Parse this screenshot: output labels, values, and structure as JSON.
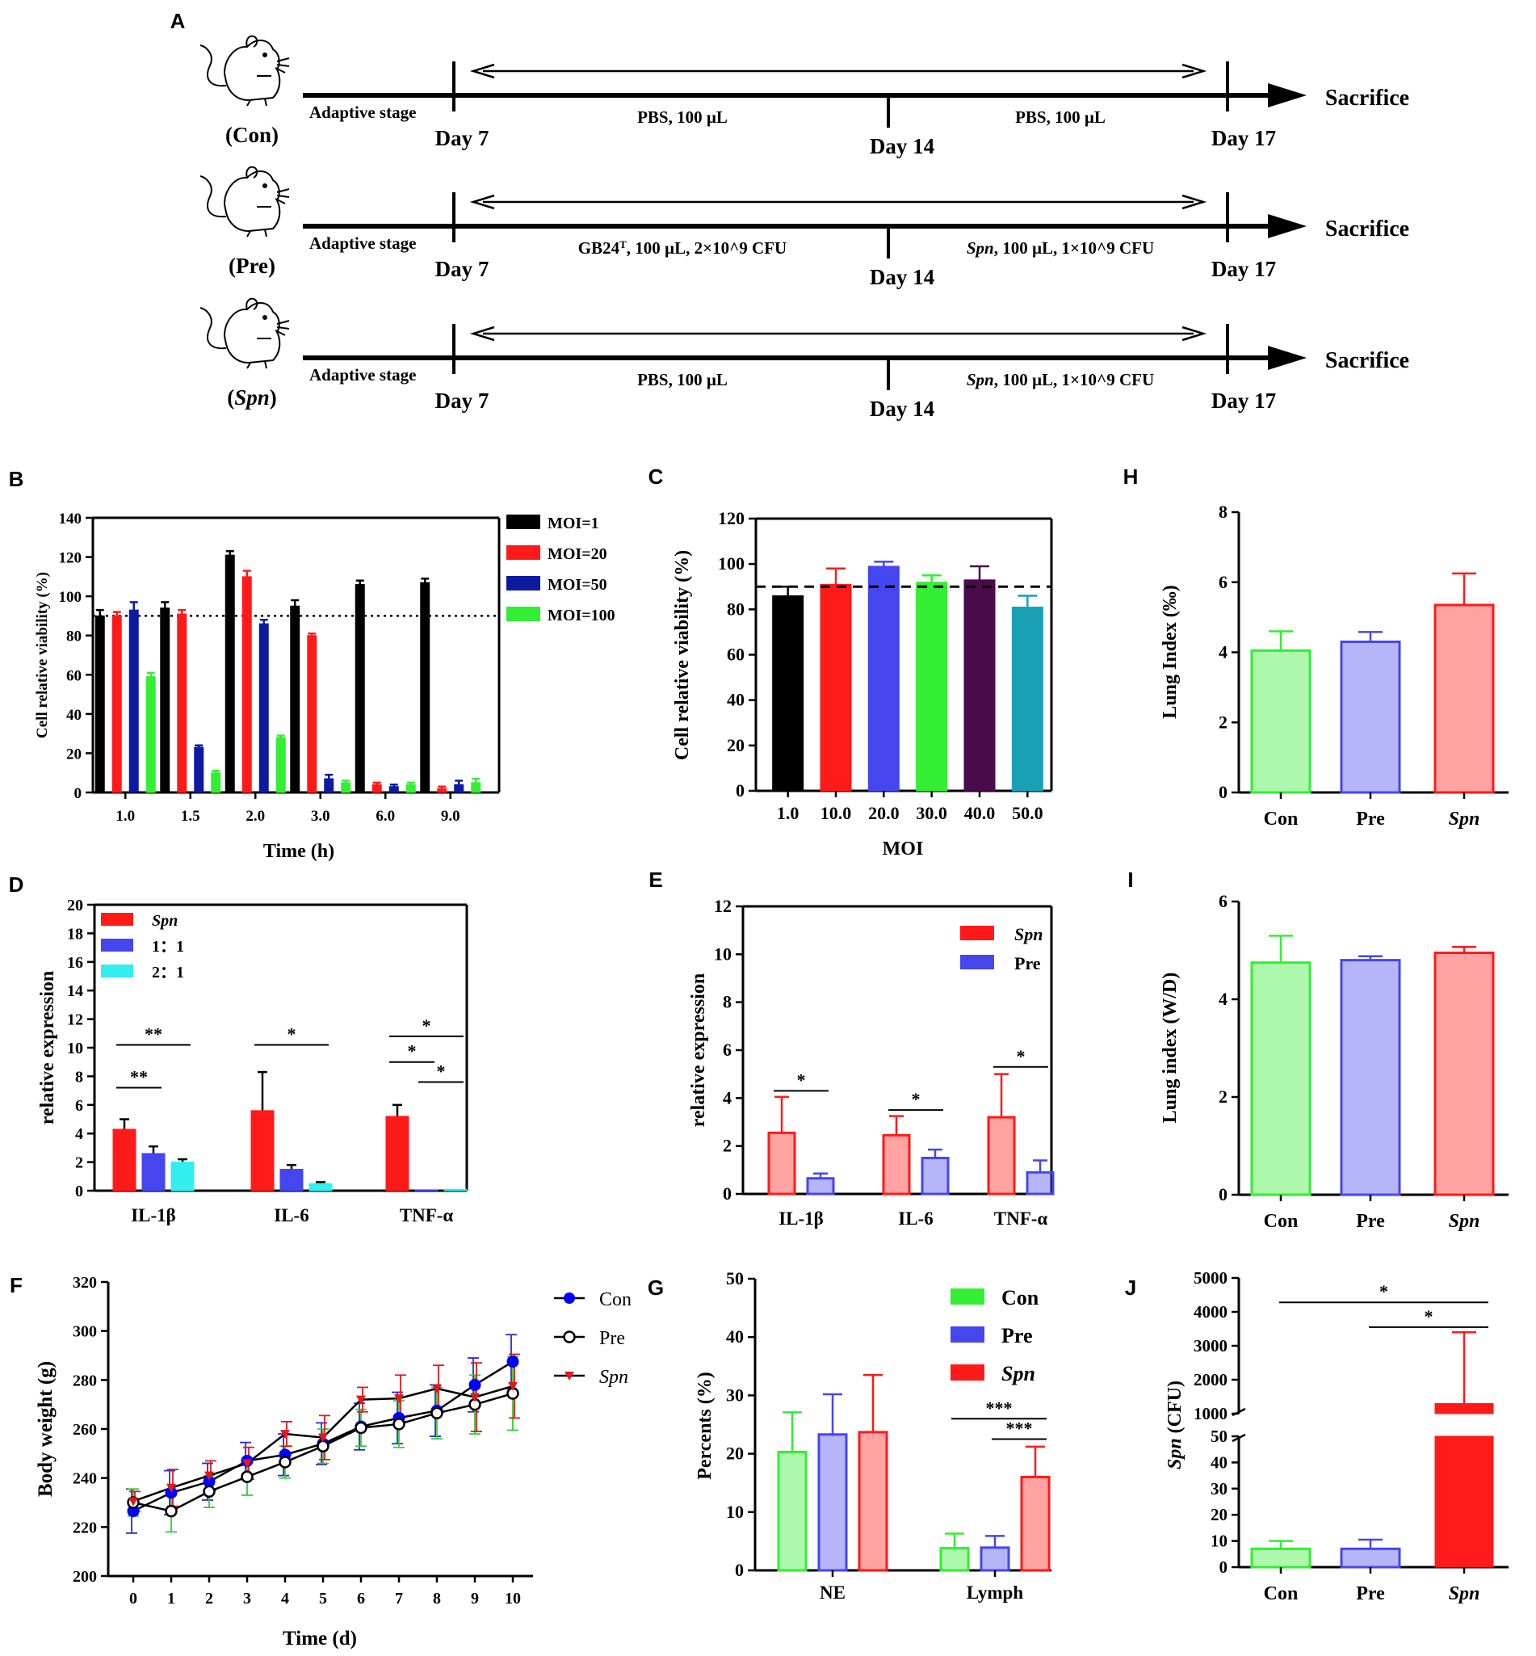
{
  "schematic": {
    "panel_label": "A",
    "sacrifice": "Sacrifice",
    "adaptive": "Adaptive stage",
    "day7": "Day 7",
    "day14": "Day 14",
    "day17": "Day 17",
    "rows": [
      {
        "group": "(Con)",
        "left_text": "PBS, 100 µL",
        "right_text": "PBS, 100 µL"
      },
      {
        "group": "(Pre)",
        "left_text": "GB24ᵀ, 100 µL, 2×10^9 CFU",
        "right_text": "Spn, 100 µL, 1×10^9 CFU"
      },
      {
        "group": "(Spn)",
        "left_text": "PBS, 100 µL",
        "right_text": "Spn, 100 µL, 1×10^9 CFU"
      }
    ]
  },
  "colors": {
    "black": "#000000",
    "red": "#ff1a1a",
    "blue": "#2a2ad8",
    "green": "#33ee33",
    "cyan": "#33eeee",
    "purple": "#4a0b4a",
    "teal": "#19a0b4",
    "navy": "#0d1a9e",
    "ltblue": "#4646ee"
  },
  "chart_data": [
    {
      "id": "B",
      "type": "bar",
      "panel_label": "B",
      "ylabel": "Cell relative viability (%)",
      "xlabel": "Time (h)",
      "ylim": [
        0,
        140
      ],
      "yticks": [
        0,
        20,
        40,
        60,
        80,
        100,
        120,
        140
      ],
      "categories": [
        "1.0",
        "1.5",
        "2.0",
        "3.0",
        "6.0",
        "9.0"
      ],
      "reference_line": 90,
      "series": [
        {
          "name": "MOI=1",
          "color": "#000000",
          "values": [
            90,
            94,
            121,
            95,
            106,
            107
          ],
          "errors": [
            3,
            3,
            2,
            3,
            2,
            2
          ]
        },
        {
          "name": "MOI=20",
          "color": "#ff1a1a",
          "values": [
            90,
            91,
            110,
            80,
            4,
            2
          ],
          "errors": [
            2,
            2,
            3,
            1,
            1,
            1
          ]
        },
        {
          "name": "MOI=50",
          "color": "#0d1a9e",
          "values": [
            93,
            23,
            86,
            7,
            3,
            4
          ],
          "errors": [
            4,
            1,
            2,
            2,
            1,
            2
          ]
        },
        {
          "name": "MOI=100",
          "color": "#33ee33",
          "values": [
            59,
            10,
            28,
            5,
            4,
            5
          ],
          "errors": [
            2,
            1,
            1,
            1,
            1,
            2
          ]
        }
      ]
    },
    {
      "id": "C",
      "type": "bar",
      "panel_label": "C",
      "ylabel": "Cell relative viability (%)",
      "xlabel": "MOI",
      "ylim": [
        0,
        120
      ],
      "yticks": [
        0,
        20,
        40,
        60,
        80,
        100,
        120
      ],
      "categories": [
        "1.0",
        "10.0",
        "20.0",
        "30.0",
        "40.0",
        "50.0"
      ],
      "reference_line": 90,
      "values": [
        86,
        91,
        99,
        92,
        93,
        81
      ],
      "errors": [
        4,
        7,
        2,
        3,
        6,
        5
      ],
      "colors": [
        "#000000",
        "#ff1a1a",
        "#4646ee",
        "#33ee33",
        "#4a0b4a",
        "#19a0b4"
      ]
    },
    {
      "id": "D",
      "type": "bar",
      "panel_label": "D",
      "ylabel": "relative expression",
      "xlabel": "",
      "ylim": [
        0,
        20
      ],
      "yticks": [
        0,
        2,
        4,
        6,
        8,
        10,
        12,
        14,
        16,
        18,
        20
      ],
      "categories": [
        "IL-1β",
        "IL-6",
        "TNF-α"
      ],
      "series": [
        {
          "name": "Spn",
          "color": "#ff1a1a",
          "values": [
            4.3,
            5.6,
            5.2
          ],
          "errors": [
            0.7,
            2.7,
            0.8
          ]
        },
        {
          "name": "1：1",
          "color": "#4646ee",
          "values": [
            2.6,
            1.5,
            0.05
          ],
          "errors": [
            0.5,
            0.3,
            0
          ]
        },
        {
          "name": "2：1",
          "color": "#33eeee",
          "values": [
            2.0,
            0.5,
            0.1
          ],
          "errors": [
            0.2,
            0.1,
            0
          ]
        }
      ],
      "significance": [
        {
          "label": "**",
          "from": [
            0,
            0
          ],
          "to": [
            0,
            1
          ],
          "y": 7.2
        },
        {
          "label": "**",
          "from": [
            0,
            0
          ],
          "to": [
            0,
            2
          ],
          "y": 10.2
        },
        {
          "label": "*",
          "from": [
            1,
            0
          ],
          "to": [
            1,
            2
          ],
          "y": 10.2
        },
        {
          "label": "*",
          "from": [
            2,
            0
          ],
          "to": [
            2,
            1
          ],
          "y": 9.0
        },
        {
          "label": "*",
          "from": [
            2,
            1
          ],
          "to": [
            2,
            2
          ],
          "y": 7.6
        },
        {
          "label": "*",
          "from": [
            2,
            0
          ],
          "to": [
            2,
            2
          ],
          "y": 10.8
        }
      ]
    },
    {
      "id": "E",
      "type": "bar",
      "panel_label": "E",
      "ylabel": "relative expression",
      "xlabel": "",
      "ylim": [
        0,
        12
      ],
      "yticks": [
        0,
        2,
        4,
        6,
        8,
        10,
        12
      ],
      "categories": [
        "IL-1β",
        "IL-6",
        "TNF-α"
      ],
      "series": [
        {
          "name": "Spn",
          "color": "#ff1a1a",
          "values": [
            2.55,
            2.45,
            3.2
          ],
          "errors": [
            1.5,
            0.8,
            1.8
          ]
        },
        {
          "name": "Pre",
          "color": "#4646ee",
          "values": [
            0.65,
            1.5,
            0.9
          ],
          "errors": [
            0.2,
            0.35,
            0.5
          ]
        }
      ],
      "significance": [
        {
          "label": "*",
          "from": [
            0,
            0
          ],
          "to": [
            0,
            1
          ],
          "y": 4.3
        },
        {
          "label": "*",
          "from": [
            1,
            0
          ],
          "to": [
            1,
            1
          ],
          "y": 3.5
        },
        {
          "label": "*",
          "from": [
            2,
            0
          ],
          "to": [
            2,
            1
          ],
          "y": 5.3
        }
      ]
    },
    {
      "id": "F",
      "type": "line",
      "panel_label": "F",
      "ylabel": "Body weight (g)",
      "xlabel": "Time (d)",
      "ylim": [
        200,
        320
      ],
      "yticks": [
        200,
        220,
        240,
        260,
        280,
        300,
        320
      ],
      "x": [
        0,
        1,
        2,
        3,
        4,
        5,
        6,
        7,
        8,
        9,
        10
      ],
      "series": [
        {
          "name": "Con",
          "color": "#0000ff",
          "marker": "filled-circle",
          "values": [
            226.5,
            234,
            238.5,
            247,
            249.5,
            254,
            261,
            264.5,
            267.5,
            278,
            287.5
          ],
          "errors": [
            9,
            9,
            7.5,
            7.5,
            8.5,
            8.5,
            9.5,
            10.5,
            10.5,
            11,
            11
          ]
        },
        {
          "name": "Pre",
          "color": "#000000",
          "marker": "open-circle",
          "values": [
            230,
            226.5,
            234.5,
            240.5,
            246.5,
            253,
            260.5,
            262,
            266.5,
            270,
            274.5
          ],
          "errors": [
            5.5,
            8.5,
            6.5,
            7.5,
            6.5,
            7,
            7.5,
            9.5,
            10.5,
            12,
            15
          ]
        },
        {
          "name": "Spn",
          "color": "#e01a1a",
          "marker": "triangle-down",
          "values": [
            230.5,
            236,
            241,
            246,
            258,
            256.5,
            272,
            272.5,
            276.5,
            273,
            277.5
          ],
          "errors": [
            4,
            7.5,
            6,
            6.5,
            5,
            9,
            5,
            9.5,
            9.5,
            14,
            13
          ]
        }
      ]
    },
    {
      "id": "G",
      "type": "bar",
      "panel_label": "G",
      "ylabel": "Percents (%)",
      "xlabel": "",
      "ylim": [
        0,
        50
      ],
      "yticks": [
        0,
        10,
        20,
        30,
        40,
        50
      ],
      "categories": [
        "NE",
        "Lymph"
      ],
      "series": [
        {
          "name": "Con",
          "color": "#33ee33",
          "values": [
            20.3,
            3.8
          ],
          "errors": [
            6.8,
            2.5
          ]
        },
        {
          "name": "Pre",
          "color": "#4646ee",
          "values": [
            23.3,
            3.9
          ],
          "errors": [
            6.9,
            2
          ]
        },
        {
          "name": "Spn",
          "color": "#ff1a1a",
          "values": [
            23.7,
            16
          ],
          "errors": [
            9.8,
            5.2
          ]
        }
      ],
      "significance": [
        {
          "label": "***",
          "from": [
            1,
            0
          ],
          "to": [
            1,
            2
          ],
          "y": 26.0
        },
        {
          "label": "***",
          "from": [
            1,
            1
          ],
          "to": [
            1,
            2
          ],
          "y": 22.5
        }
      ]
    },
    {
      "id": "H",
      "type": "bar",
      "panel_label": "H",
      "ylabel": "Lung Index (‰)",
      "xlabel": "",
      "ylim": [
        0,
        8
      ],
      "yticks": [
        0,
        2,
        4,
        6,
        8
      ],
      "categories": [
        "Con",
        "Pre",
        "Spn"
      ],
      "values": [
        4.05,
        4.3,
        5.35
      ],
      "errors": [
        0.55,
        0.28,
        0.9
      ],
      "colors": [
        "#33ee33",
        "#4646ee",
        "#ff1a1a"
      ]
    },
    {
      "id": "I",
      "type": "bar",
      "panel_label": "I",
      "ylabel": "Lung index (W/D)",
      "xlabel": "",
      "ylim": [
        0,
        6
      ],
      "yticks": [
        0,
        2,
        4,
        6
      ],
      "categories": [
        "Con",
        "Pre",
        "Spn"
      ],
      "values": [
        4.75,
        4.8,
        4.95
      ],
      "errors": [
        0.55,
        0.08,
        0.12
      ],
      "colors": [
        "#33ee33",
        "#4646ee",
        "#ff1a1a"
      ]
    },
    {
      "id": "J",
      "type": "bar",
      "panel_label": "J",
      "ylabel": "Spn (CFU)",
      "xlabel": "",
      "axis_break": {
        "lower": [
          0,
          50
        ],
        "upper": [
          1000,
          5000
        ]
      },
      "yticks_lower": [
        0,
        10,
        20,
        30,
        40,
        50
      ],
      "yticks_upper": [
        1000,
        2000,
        3000,
        4000,
        5000
      ],
      "categories": [
        "Con",
        "Pre",
        "Spn"
      ],
      "values": [
        7,
        7,
        1300
      ],
      "errors": [
        3,
        3.5,
        2100
      ],
      "colors": [
        "#33ee33",
        "#4646ee",
        "#ff1a1a"
      ],
      "significance": [
        {
          "label": "*",
          "from": 0,
          "to": 2,
          "y": 4280
        },
        {
          "label": "*",
          "from": 1,
          "to": 2,
          "y": 3550
        }
      ]
    }
  ]
}
